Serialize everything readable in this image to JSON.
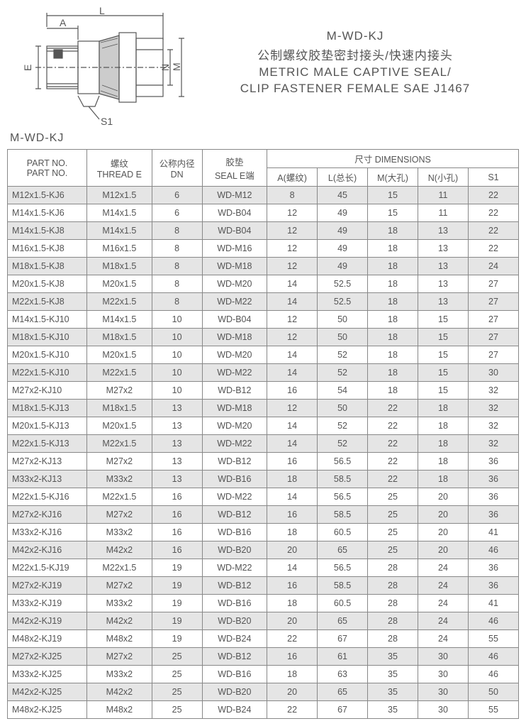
{
  "title": {
    "code": "M-WD-KJ",
    "cn": "公制螺纹胶垫密封接头/快速内接头",
    "en1": "METRIC MALE CAPTIVE SEAL/",
    "en2": "CLIP FASTENER FEMALE SAE J1467"
  },
  "part_label": "M-WD-KJ",
  "diagram_labels": {
    "L": "L",
    "A": "A",
    "E": "E",
    "N": "N",
    "M": "M",
    "S1": "S1"
  },
  "headers": {
    "part1": "PART NO.",
    "part2": "PART NO.",
    "thread1": "螺纹",
    "thread2": "THREAD E",
    "dn1": "公称内径",
    "dn2": "DN",
    "seal1": "胶垫",
    "seal2": "SEAL E端",
    "dim_group": "尺寸  DIMENSIONS",
    "A": "A(螺纹)",
    "L": "L(总长)",
    "M": "M(大孔)",
    "N": "N(小孔)",
    "S1": "S1"
  },
  "rows": [
    {
      "p": "M12x1.5-KJ6",
      "t": "M12x1.5",
      "dn": "6",
      "s": "WD-M12",
      "a": "8",
      "l": "45",
      "m": "15",
      "n": "11",
      "s1": "22"
    },
    {
      "p": "M14x1.5-KJ6",
      "t": "M14x1.5",
      "dn": "6",
      "s": "WD-B04",
      "a": "12",
      "l": "49",
      "m": "15",
      "n": "11",
      "s1": "22"
    },
    {
      "p": "M14x1.5-KJ8",
      "t": "M14x1.5",
      "dn": "8",
      "s": "WD-B04",
      "a": "12",
      "l": "49",
      "m": "18",
      "n": "13",
      "s1": "22"
    },
    {
      "p": "M16x1.5-KJ8",
      "t": "M16x1.5",
      "dn": "8",
      "s": "WD-M16",
      "a": "12",
      "l": "49",
      "m": "18",
      "n": "13",
      "s1": "22"
    },
    {
      "p": "M18x1.5-KJ8",
      "t": "M18x1.5",
      "dn": "8",
      "s": "WD-M18",
      "a": "12",
      "l": "49",
      "m": "18",
      "n": "13",
      "s1": "24"
    },
    {
      "p": "M20x1.5-KJ8",
      "t": "M20x1.5",
      "dn": "8",
      "s": "WD-M20",
      "a": "14",
      "l": "52.5",
      "m": "18",
      "n": "13",
      "s1": "27"
    },
    {
      "p": "M22x1.5-KJ8",
      "t": "M22x1.5",
      "dn": "8",
      "s": "WD-M22",
      "a": "14",
      "l": "52.5",
      "m": "18",
      "n": "13",
      "s1": "27"
    },
    {
      "p": "M14x1.5-KJ10",
      "t": "M14x1.5",
      "dn": "10",
      "s": "WD-B04",
      "a": "12",
      "l": "50",
      "m": "18",
      "n": "15",
      "s1": "27"
    },
    {
      "p": "M18x1.5-KJ10",
      "t": "M18x1.5",
      "dn": "10",
      "s": "WD-M18",
      "a": "12",
      "l": "50",
      "m": "18",
      "n": "15",
      "s1": "27"
    },
    {
      "p": "M20x1.5-KJ10",
      "t": "M20x1.5",
      "dn": "10",
      "s": "WD-M20",
      "a": "14",
      "l": "52",
      "m": "18",
      "n": "15",
      "s1": "27"
    },
    {
      "p": "M22x1.5-KJ10",
      "t": "M22x1.5",
      "dn": "10",
      "s": "WD-M22",
      "a": "14",
      "l": "52",
      "m": "18",
      "n": "15",
      "s1": "30"
    },
    {
      "p": "M27x2-KJ10",
      "t": "M27x2",
      "dn": "10",
      "s": "WD-B12",
      "a": "16",
      "l": "54",
      "m": "18",
      "n": "15",
      "s1": "32"
    },
    {
      "p": "M18x1.5-KJ13",
      "t": "M18x1.5",
      "dn": "13",
      "s": "WD-M18",
      "a": "12",
      "l": "50",
      "m": "22",
      "n": "18",
      "s1": "32"
    },
    {
      "p": "M20x1.5-KJ13",
      "t": "M20x1.5",
      "dn": "13",
      "s": "WD-M20",
      "a": "14",
      "l": "52",
      "m": "22",
      "n": "18",
      "s1": "32"
    },
    {
      "p": "M22x1.5-KJ13",
      "t": "M22x1.5",
      "dn": "13",
      "s": "WD-M22",
      "a": "14",
      "l": "52",
      "m": "22",
      "n": "18",
      "s1": "32"
    },
    {
      "p": "M27x2-KJ13",
      "t": "M27x2",
      "dn": "13",
      "s": "WD-B12",
      "a": "16",
      "l": "56.5",
      "m": "22",
      "n": "18",
      "s1": "36"
    },
    {
      "p": "M33x2-KJ13",
      "t": "M33x2",
      "dn": "13",
      "s": "WD-B16",
      "a": "18",
      "l": "58.5",
      "m": "22",
      "n": "18",
      "s1": "36"
    },
    {
      "p": "M22x1.5-KJ16",
      "t": "M22x1.5",
      "dn": "16",
      "s": "WD-M22",
      "a": "14",
      "l": "56.5",
      "m": "25",
      "n": "20",
      "s1": "36"
    },
    {
      "p": "M27x2-KJ16",
      "t": "M27x2",
      "dn": "16",
      "s": "WD-B12",
      "a": "16",
      "l": "58.5",
      "m": "25",
      "n": "20",
      "s1": "36"
    },
    {
      "p": "M33x2-KJ16",
      "t": "M33x2",
      "dn": "16",
      "s": "WD-B16",
      "a": "18",
      "l": "60.5",
      "m": "25",
      "n": "20",
      "s1": "41"
    },
    {
      "p": "M42x2-KJ16",
      "t": "M42x2",
      "dn": "16",
      "s": "WD-B20",
      "a": "20",
      "l": "65",
      "m": "25",
      "n": "20",
      "s1": "46"
    },
    {
      "p": "M22x1.5-KJ19",
      "t": "M22x1.5",
      "dn": "19",
      "s": "WD-M22",
      "a": "14",
      "l": "56.5",
      "m": "28",
      "n": "24",
      "s1": "36"
    },
    {
      "p": "M27x2-KJ19",
      "t": "M27x2",
      "dn": "19",
      "s": "WD-B12",
      "a": "16",
      "l": "58.5",
      "m": "28",
      "n": "24",
      "s1": "36"
    },
    {
      "p": "M33x2-KJ19",
      "t": "M33x2",
      "dn": "19",
      "s": "WD-B16",
      "a": "18",
      "l": "60.5",
      "m": "28",
      "n": "24",
      "s1": "41"
    },
    {
      "p": "M42x2-KJ19",
      "t": "M42x2",
      "dn": "19",
      "s": "WD-B20",
      "a": "20",
      "l": "65",
      "m": "28",
      "n": "24",
      "s1": "46"
    },
    {
      "p": "M48x2-KJ19",
      "t": "M48x2",
      "dn": "19",
      "s": "WD-B24",
      "a": "22",
      "l": "67",
      "m": "28",
      "n": "24",
      "s1": "55"
    },
    {
      "p": "M27x2-KJ25",
      "t": "M27x2",
      "dn": "25",
      "s": "WD-B12",
      "a": "16",
      "l": "61",
      "m": "35",
      "n": "30",
      "s1": "46"
    },
    {
      "p": "M33x2-KJ25",
      "t": "M33x2",
      "dn": "25",
      "s": "WD-B16",
      "a": "18",
      "l": "63",
      "m": "35",
      "n": "30",
      "s1": "46"
    },
    {
      "p": "M42x2-KJ25",
      "t": "M42x2",
      "dn": "25",
      "s": "WD-B20",
      "a": "20",
      "l": "65",
      "m": "35",
      "n": "30",
      "s1": "50"
    },
    {
      "p": "M48x2-KJ25",
      "t": "M48x2",
      "dn": "25",
      "s": "WD-B24",
      "a": "22",
      "l": "67",
      "m": "35",
      "n": "30",
      "s1": "55"
    }
  ],
  "style": {
    "row_bg_odd": "#e5e5e5",
    "row_bg_even": "#ffffff",
    "border": "#888888",
    "text": "#555555",
    "font_size_table": 12.5,
    "font_size_title": 17
  }
}
